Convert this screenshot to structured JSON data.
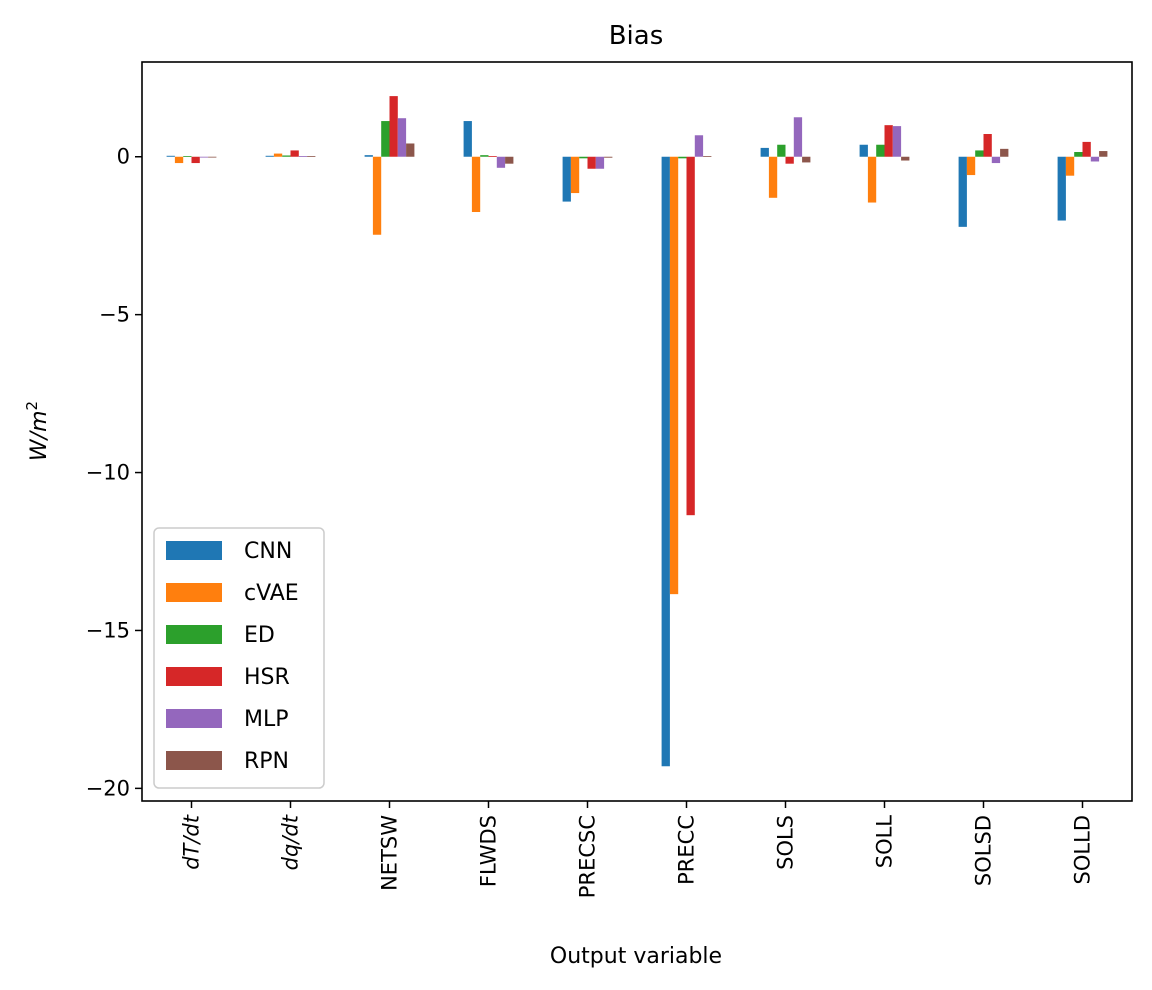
{
  "chart_data": {
    "type": "bar",
    "title": "Bias",
    "xlabel": "Output variable",
    "ylabel": "W/m",
    "ylabel_superscript": "2",
    "ylim": [
      -20.4,
      3.0
    ],
    "yticks": [
      0,
      -5,
      -10,
      -15,
      -20
    ],
    "ytick_labels": [
      "0",
      "−5",
      "−10",
      "−15",
      "−20"
    ],
    "categories": [
      "dT/dt",
      "dq/dt",
      "NETSW",
      "FLWDS",
      "PRECSC",
      "PRECC",
      "SOLS",
      "SOLL",
      "SOLSD",
      "SOLLD"
    ],
    "italic_categories": [
      "dT/dt",
      "dq/dt"
    ],
    "legend_position": "lower-left",
    "series": [
      {
        "name": "CNN",
        "color": "#1f77b4",
        "values": [
          0.03,
          0.03,
          0.05,
          1.13,
          -1.42,
          -19.3,
          0.28,
          0.38,
          -2.22,
          -2.02
        ]
      },
      {
        "name": "cVAE",
        "color": "#ff7f0e",
        "values": [
          -0.2,
          0.1,
          -2.47,
          -1.75,
          -1.15,
          -13.85,
          -1.3,
          -1.45,
          -0.58,
          -0.6
        ]
      },
      {
        "name": "ED",
        "color": "#2ca02c",
        "values": [
          0.02,
          0.04,
          1.13,
          0.05,
          -0.05,
          -0.05,
          0.38,
          0.38,
          0.2,
          0.15
        ]
      },
      {
        "name": "HSR",
        "color": "#d62728",
        "values": [
          -0.2,
          0.2,
          1.92,
          0.02,
          -0.38,
          -11.35,
          -0.22,
          1.0,
          0.72,
          0.47
        ]
      },
      {
        "name": "MLP",
        "color": "#9467bd",
        "values": [
          0.0,
          0.02,
          1.22,
          -0.35,
          -0.38,
          0.68,
          1.25,
          0.97,
          -0.2,
          -0.15
        ]
      },
      {
        "name": "RPN",
        "color": "#8c564b",
        "values": [
          0.0,
          0.02,
          0.42,
          -0.22,
          -0.03,
          0.02,
          -0.18,
          -0.12,
          0.25,
          0.18
        ]
      }
    ]
  }
}
